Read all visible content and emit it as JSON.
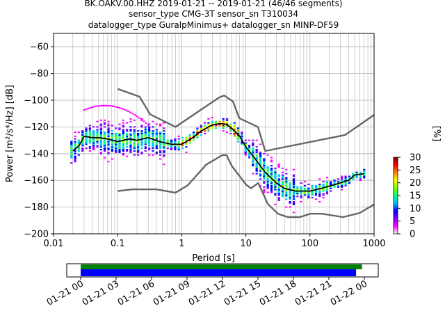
{
  "title_lines": [
    "BK.OAKV.00.HHZ   2019-01-21 -- 2019-01-21  (46/46 segments)",
    "sensor_type CMG-3T sensor_sn T310034",
    "datalogger_type GuralpMinimus+ datalogger_sn MINP-DF59"
  ],
  "colorbar": {
    "label": "[%]",
    "ticks": [
      "0",
      "5",
      "10",
      "15",
      "20",
      "25",
      "30"
    ],
    "range": [
      0,
      30
    ]
  },
  "timeline": {
    "tick_labels": [
      "01-21 00",
      "01-21 03",
      "01-21 06",
      "01-21 09",
      "01-21 12",
      "01-21 15",
      "01-21 18",
      "01-21 21",
      "01-22 00"
    ],
    "green_bar_hours": [
      0,
      23.8
    ],
    "blue_bar_hours": [
      0,
      23.3
    ],
    "green_color": "#008000",
    "blue_color": "#0000ff"
  },
  "chart_data": {
    "type": "heatmap",
    "title": "BK.OAKV.00.HHZ   2019-01-21 -- 2019-01-21  (46/46 segments)",
    "xlabel": "Period [s]",
    "ylabel": "Power [m²/s⁴/Hz] [dB]",
    "xscale": "log",
    "xlim": [
      0.01,
      1000
    ],
    "ylim": [
      -200,
      -50
    ],
    "xticks": [
      "0.01",
      "0.1",
      "1",
      "10",
      "100",
      "1000"
    ],
    "yticks": [
      "−200",
      "−180",
      "−160",
      "−140",
      "−120",
      "−100",
      "−80",
      "−60"
    ],
    "grid": true,
    "series": [
      {
        "role": "mean",
        "color": "#000000",
        "points": [
          [
            0.02,
            -138
          ],
          [
            0.025,
            -134
          ],
          [
            0.03,
            -127
          ],
          [
            0.04,
            -128
          ],
          [
            0.05,
            -128
          ],
          [
            0.07,
            -129
          ],
          [
            0.1,
            -131
          ],
          [
            0.15,
            -129
          ],
          [
            0.2,
            -130
          ],
          [
            0.3,
            -128
          ],
          [
            0.45,
            -131
          ],
          [
            0.7,
            -133
          ],
          [
            1,
            -133
          ],
          [
            1.5,
            -128
          ],
          [
            2,
            -123
          ],
          [
            3,
            -118.5
          ],
          [
            4,
            -117.5
          ],
          [
            5,
            -118
          ],
          [
            6,
            -121
          ],
          [
            8,
            -127
          ],
          [
            10,
            -135
          ],
          [
            14,
            -144
          ],
          [
            20,
            -154
          ],
          [
            30,
            -162
          ],
          [
            40,
            -166
          ],
          [
            60,
            -168
          ],
          [
            100,
            -168
          ],
          [
            150,
            -166
          ],
          [
            250,
            -163
          ],
          [
            400,
            -160
          ],
          [
            500,
            -156
          ],
          [
            700,
            -155
          ]
        ]
      },
      {
        "role": "high-noise-model",
        "color": "#666666",
        "points": [
          [
            0.1,
            -91.5
          ],
          [
            0.22,
            -97.4
          ],
          [
            0.32,
            -110.5
          ],
          [
            0.8,
            -120
          ],
          [
            3.8,
            -98
          ],
          [
            4.6,
            -96.5
          ],
          [
            6.3,
            -101
          ],
          [
            7.9,
            -113.5
          ],
          [
            15.4,
            -120
          ],
          [
            20,
            -138
          ],
          [
            354.8,
            -126
          ],
          [
            1000,
            -111
          ]
        ]
      },
      {
        "role": "low-noise-model",
        "color": "#666666",
        "points": [
          [
            0.1,
            -168
          ],
          [
            0.17,
            -166.7
          ],
          [
            0.4,
            -166.7
          ],
          [
            0.8,
            -169.2
          ],
          [
            1.24,
            -163.7
          ],
          [
            2.4,
            -148.3
          ],
          [
            4.3,
            -141.1
          ],
          [
            5,
            -141.1
          ],
          [
            6,
            -149
          ],
          [
            10,
            -163
          ],
          [
            12,
            -166
          ],
          [
            15.6,
            -162
          ],
          [
            21.9,
            -177.5
          ],
          [
            31.6,
            -185
          ],
          [
            45,
            -187.5
          ],
          [
            70,
            -187.5
          ],
          [
            101,
            -185
          ],
          [
            154,
            -185
          ],
          [
            328,
            -187.5
          ],
          [
            600,
            -184.4
          ],
          [
            1000,
            -178
          ]
        ]
      }
    ],
    "density_color_scale": [
      "#ffffff",
      "#ff00ff",
      "#8000ff",
      "#0000ff",
      "#00bfff",
      "#00ff80",
      "#80ff00",
      "#ffff00",
      "#ff8000",
      "#ff0000",
      "#800000"
    ]
  }
}
